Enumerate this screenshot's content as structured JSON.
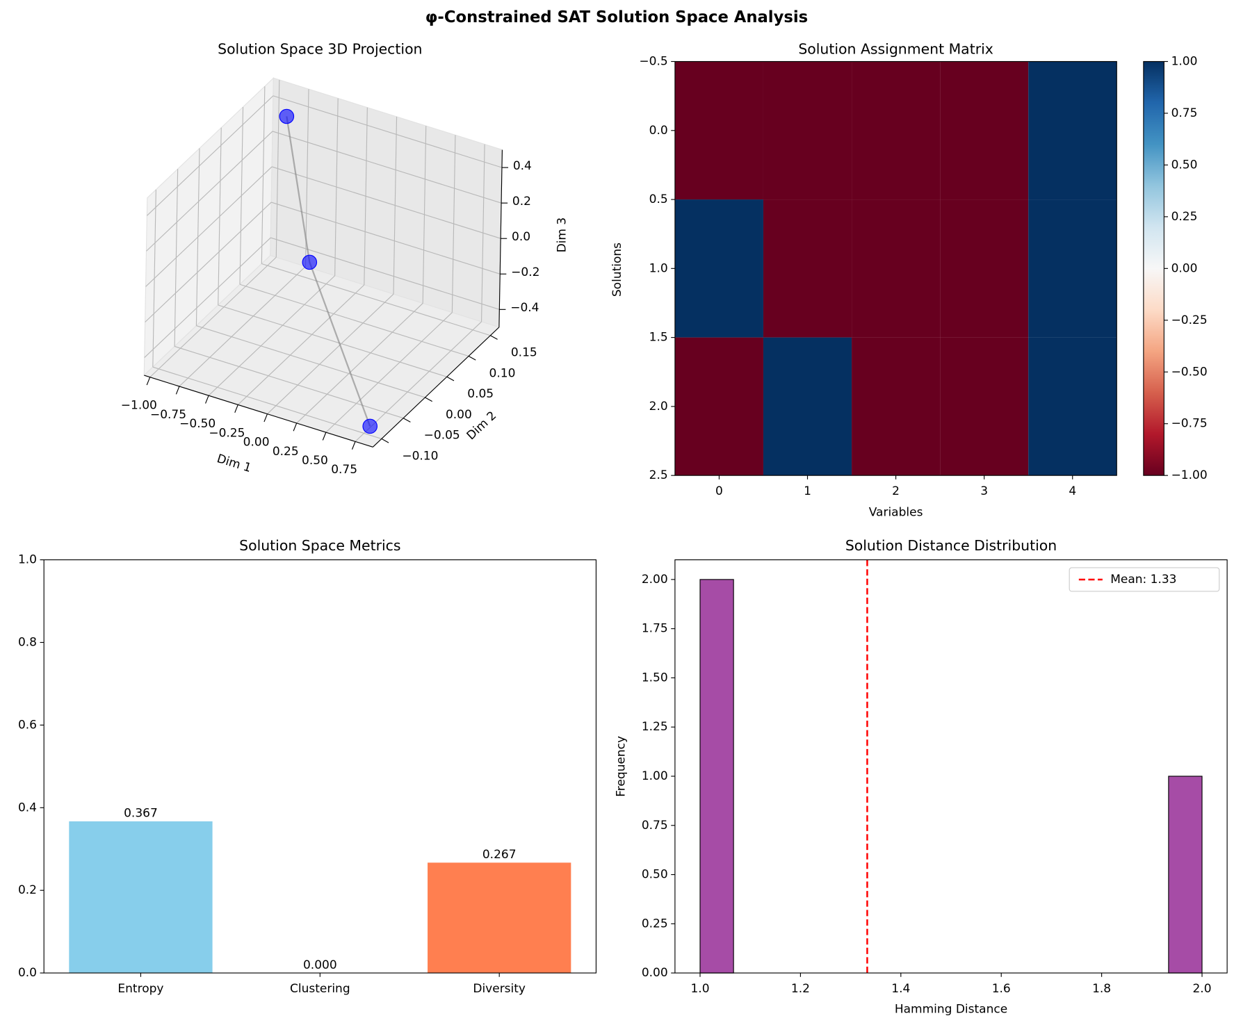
{
  "title": "φ-Constrained SAT Solution Space Analysis",
  "chart_data": [
    {
      "type": "scatter3d",
      "title": "Solution Space 3D Projection",
      "xlabel": "Dim 1",
      "ylabel": "Dim 2",
      "zlabel": "Dim 3",
      "x": [
        -0.86,
        -0.27,
        0.8
      ],
      "y": [
        0.15,
        0.047,
        -0.1
      ],
      "z": [
        0.37,
        -0.09,
        -0.45
      ],
      "color": "#0000ff",
      "line_color": "#808080",
      "xlim": [
        -1.05,
        0.9
      ],
      "ylim": [
        -0.12,
        0.17
      ],
      "zlim": [
        -0.5,
        0.5
      ],
      "xticks": [
        {
          "value": -1,
          "label": "−1.00"
        },
        {
          "value": -0.75,
          "label": "−0.75"
        },
        {
          "value": -0.5,
          "label": "−0.50"
        },
        {
          "value": -0.25,
          "label": "−0.25"
        },
        {
          "value": 0,
          "label": "0.00"
        },
        0.25,
        {
          "value": 0.5,
          "label": "0.50"
        },
        0.75
      ],
      "yticks": [
        {
          "value": -0.1,
          "label": "−0.10"
        },
        {
          "value": -0.05,
          "label": "−0.05"
        },
        {
          "value": 0,
          "label": "0.00"
        },
        0.05,
        {
          "value": 0.1,
          "label": "0.10"
        },
        0.15
      ],
      "zticks": [
        {
          "value": -0.4,
          "label": "−0.4"
        },
        {
          "value": -0.2,
          "label": "−0.2"
        },
        {
          "value": 0,
          "label": "0.0"
        },
        0.2,
        0.4
      ]
    },
    {
      "type": "heatmap",
      "title": "Solution Assignment Matrix",
      "xlabel": "Variables",
      "ylabel": "Solutions",
      "values": [
        [
          -1,
          -1,
          -1,
          -1,
          1
        ],
        [
          1,
          -1,
          -1,
          -1,
          1
        ],
        [
          -1,
          1,
          -1,
          -1,
          1
        ]
      ],
      "colormap": "RdBu",
      "clim": [
        -1,
        1
      ],
      "xlim": [
        -0.5,
        4.5
      ],
      "ylim": [
        2.5,
        -0.5
      ],
      "xticks": [
        0,
        1,
        2,
        3,
        4
      ],
      "yticks": [
        {
          "value": -0.5,
          "label": "−0.5"
        },
        {
          "value": 0,
          "label": "0.0"
        },
        0.5,
        {
          "value": 1,
          "label": "1.0"
        },
        1.5,
        {
          "value": 2,
          "label": "2.0"
        },
        2.5
      ],
      "cticks": [
        {
          "value": -1,
          "label": "−1.00"
        },
        {
          "value": -0.75,
          "label": "−0.75"
        },
        {
          "value": -0.5,
          "label": "−0.50"
        },
        {
          "value": -0.25,
          "label": "−0.25"
        },
        {
          "value": 0,
          "label": "0.00"
        },
        0.25,
        {
          "value": 0.5,
          "label": "0.50"
        },
        0.75,
        {
          "value": 1,
          "label": "1.00"
        }
      ]
    },
    {
      "type": "bar",
      "title": "Solution Space Metrics",
      "categories": [
        "Entropy",
        "Clustering",
        "Diversity"
      ],
      "values": [
        0.367,
        0,
        0.267
      ],
      "value_labels": [
        "0.367",
        "0.000",
        "0.267"
      ],
      "colors": [
        "#87ceeb",
        "#90ee90",
        "#ff7f50"
      ],
      "ylim": [
        0,
        1
      ],
      "yticks": [
        {
          "value": 0,
          "label": "0.0"
        },
        0.2,
        0.4,
        0.6,
        0.8,
        {
          "value": 1,
          "label": "1.0"
        }
      ]
    },
    {
      "type": "histogram",
      "title": "Solution Distance Distribution",
      "xlabel": "Hamming Distance",
      "ylabel": "Frequency",
      "bins": [
        1.0,
        1.0667,
        1.1333,
        1.2,
        1.2667,
        1.3333,
        1.4,
        1.4667,
        1.5333,
        1.6,
        1.6667,
        1.7333,
        1.8,
        1.8667,
        1.9333,
        2.0
      ],
      "counts": [
        2,
        0,
        0,
        0,
        0,
        0,
        0,
        0,
        0,
        0,
        0,
        0,
        0,
        0,
        1
      ],
      "color": "#a64ca6",
      "edge_color": "#000000",
      "vlines": [
        {
          "x": 1.333,
          "label": "Mean: 1.33",
          "color": "#ff0000"
        }
      ],
      "legend": "upper right",
      "xlim": [
        0.95,
        2.05
      ],
      "ylim": [
        0,
        2.1
      ],
      "xticks": [
        {
          "value": 1,
          "label": "1.0"
        },
        1.2,
        1.4,
        1.6,
        1.8,
        {
          "value": 2,
          "label": "2.0"
        }
      ],
      "yticks": [
        {
          "value": 0,
          "label": "0.00"
        },
        0.25,
        {
          "value": 0.5,
          "label": "0.50"
        },
        0.75,
        {
          "value": 1,
          "label": "1.00"
        },
        1.25,
        {
          "value": 1.5,
          "label": "1.50"
        },
        1.75,
        {
          "value": 2,
          "label": "2.00"
        }
      ]
    }
  ]
}
